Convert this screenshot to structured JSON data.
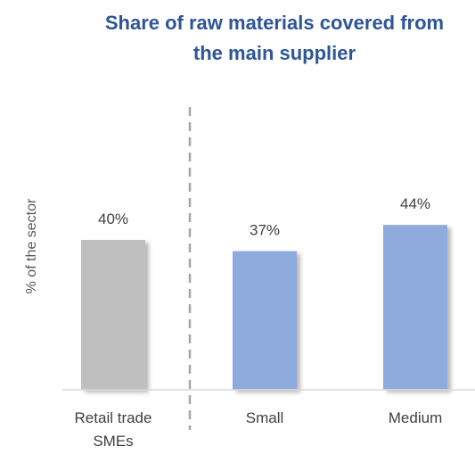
{
  "chart_data": {
    "type": "bar",
    "title_lines": [
      "Share of raw materials covered from",
      "the main supplier"
    ],
    "ylabel": "% of the sector",
    "categories": [
      {
        "lines": [
          "Retail trade",
          "SMEs"
        ]
      },
      {
        "lines": [
          "Small"
        ]
      },
      {
        "lines": [
          "Medium"
        ]
      }
    ],
    "values": [
      40,
      37,
      44
    ],
    "data_labels": [
      "40%",
      "37%",
      "44%"
    ],
    "bar_colors": [
      "#bfbfbf",
      "#8faadc",
      "#8faadc"
    ],
    "ylim": [
      0,
      50
    ],
    "grid": false,
    "separator_after_category": 0
  }
}
